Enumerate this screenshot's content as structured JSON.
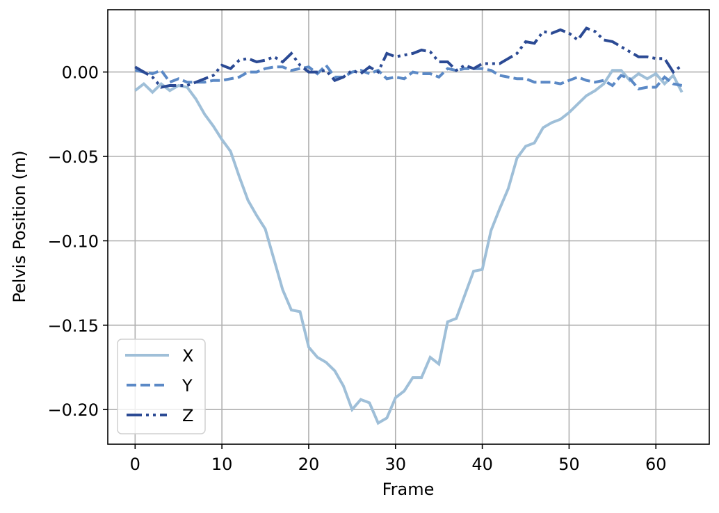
{
  "chart_data": {
    "type": "line",
    "title": "",
    "xlabel": "Frame",
    "ylabel": "Pelvis Position (m)",
    "xlim": [
      -3.15,
      66.15
    ],
    "ylim": [
      -0.2205,
      0.0369
    ],
    "xticks": [
      0,
      10,
      20,
      30,
      40,
      50,
      60
    ],
    "xtick_labels": [
      "0",
      "10",
      "20",
      "30",
      "40",
      "50",
      "60"
    ],
    "yticks": [
      0.0,
      -0.05,
      -0.1,
      -0.15,
      -0.2
    ],
    "ytick_labels": [
      "0.00",
      "−0.05",
      "−0.10",
      "−0.15",
      "−0.20"
    ],
    "grid": true,
    "legend_position": "lower left",
    "x": [
      0,
      1,
      2,
      3,
      4,
      5,
      6,
      7,
      8,
      9,
      10,
      11,
      12,
      13,
      14,
      15,
      16,
      17,
      18,
      19,
      20,
      21,
      22,
      23,
      24,
      25,
      26,
      27,
      28,
      29,
      30,
      31,
      32,
      33,
      34,
      35,
      36,
      37,
      38,
      39,
      40,
      41,
      42,
      43,
      44,
      45,
      46,
      47,
      48,
      49,
      50,
      51,
      52,
      53,
      54,
      55,
      56,
      57,
      58,
      59,
      60,
      61,
      62,
      63
    ],
    "series": [
      {
        "name": "X",
        "color": "#9fbfd8",
        "linestyle": "solid",
        "values": [
          -0.011,
          -0.007,
          -0.012,
          -0.007,
          -0.011,
          -0.008,
          -0.009,
          -0.016,
          -0.025,
          -0.032,
          -0.04,
          -0.047,
          -0.062,
          -0.076,
          -0.085,
          -0.093,
          -0.111,
          -0.129,
          -0.141,
          -0.142,
          -0.163,
          -0.169,
          -0.172,
          -0.177,
          -0.186,
          -0.2,
          -0.194,
          -0.196,
          -0.208,
          -0.205,
          -0.193,
          -0.189,
          -0.181,
          -0.181,
          -0.169,
          -0.173,
          -0.148,
          -0.146,
          -0.132,
          -0.118,
          -0.117,
          -0.094,
          -0.081,
          -0.069,
          -0.051,
          -0.044,
          -0.042,
          -0.033,
          -0.03,
          -0.028,
          -0.024,
          -0.019,
          -0.014,
          -0.011,
          -0.007,
          0.001,
          0.001,
          -0.005,
          -0.001,
          -0.004,
          -0.001,
          -0.007,
          -0.002,
          -0.012
        ]
      },
      {
        "name": "Y",
        "color": "#5b89c6",
        "linestyle": "dashed",
        "values": [
          0.001,
          0.0,
          -0.001,
          0.001,
          -0.006,
          -0.004,
          -0.006,
          -0.006,
          -0.006,
          -0.005,
          -0.005,
          -0.004,
          -0.003,
          0.0,
          -0.0,
          0.002,
          0.003,
          0.003,
          0.001,
          0.002,
          0.003,
          -0.001,
          0.004,
          -0.003,
          -0.003,
          0.0,
          0.001,
          -0.001,
          0.001,
          -0.004,
          -0.003,
          -0.004,
          0.0,
          -0.001,
          -0.001,
          -0.003,
          0.002,
          0.001,
          0.002,
          0.002,
          0.002,
          0.001,
          -0.002,
          -0.003,
          -0.004,
          -0.004,
          -0.006,
          -0.006,
          -0.006,
          -0.007,
          -0.005,
          -0.003,
          -0.005,
          -0.006,
          -0.005,
          -0.008,
          -0.002,
          -0.004,
          -0.01,
          -0.009,
          -0.009,
          -0.003,
          -0.007,
          -0.008
        ]
      },
      {
        "name": "Z",
        "color": "#2b4a94",
        "linestyle": "dashdot",
        "values": [
          0.003,
          0.0,
          -0.003,
          -0.009,
          -0.008,
          -0.008,
          -0.008,
          -0.006,
          -0.004,
          -0.002,
          0.004,
          0.002,
          0.007,
          0.008,
          0.006,
          0.007,
          0.009,
          0.006,
          0.011,
          0.004,
          0.0,
          0.0,
          0.001,
          -0.005,
          -0.003,
          0.001,
          -0.001,
          0.003,
          0.0,
          0.011,
          0.009,
          0.01,
          0.011,
          0.013,
          0.012,
          0.006,
          0.006,
          0.001,
          0.004,
          0.002,
          0.005,
          0.005,
          0.005,
          0.008,
          0.011,
          0.018,
          0.017,
          0.024,
          0.023,
          0.025,
          0.023,
          0.019,
          0.026,
          0.024,
          0.019,
          0.018,
          0.015,
          0.012,
          0.009,
          0.009,
          0.008,
          0.008,
          0.0,
          0.004
        ]
      }
    ],
    "legend": [
      {
        "label": "X",
        "color": "#9fbfd8",
        "linestyle": "solid"
      },
      {
        "label": "Y",
        "color": "#5b89c6",
        "linestyle": "dashed"
      },
      {
        "label": "Z",
        "color": "#2b4a94",
        "linestyle": "dashdot"
      }
    ]
  },
  "legend_labels": {
    "x": "X",
    "y": "Y",
    "z": "Z"
  },
  "axes": {
    "xlabel": "Frame",
    "ylabel": "Pelvis Position (m)"
  }
}
